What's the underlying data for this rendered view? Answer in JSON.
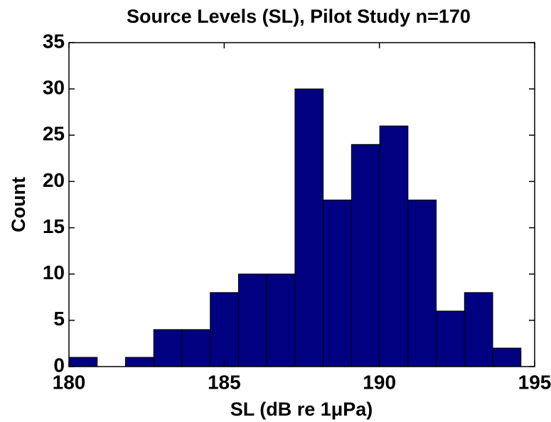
{
  "chart_data": {
    "type": "histogram",
    "title": "Source Levels (SL), Pilot Study n=170",
    "x_label": "SL (dB re 1μPa)",
    "y_label": "Count",
    "bins": [
      180,
      180.91,
      181.82,
      182.73,
      183.64,
      184.55,
      185.46,
      186.37,
      187.28,
      188.19,
      189.1,
      190.01,
      190.92,
      191.83,
      192.74,
      193.65,
      194.56
    ],
    "values": [
      1,
      0,
      1,
      4,
      4,
      8,
      10,
      10,
      30,
      18,
      24,
      26,
      18,
      6,
      8,
      2
    ],
    "color": "#000080",
    "xlim": [
      180,
      195
    ],
    "xticks": [
      180,
      185,
      190,
      195
    ],
    "ylim": [
      0,
      35
    ],
    "yticks": [
      0,
      5,
      10,
      15,
      20,
      25,
      30,
      35
    ]
  }
}
